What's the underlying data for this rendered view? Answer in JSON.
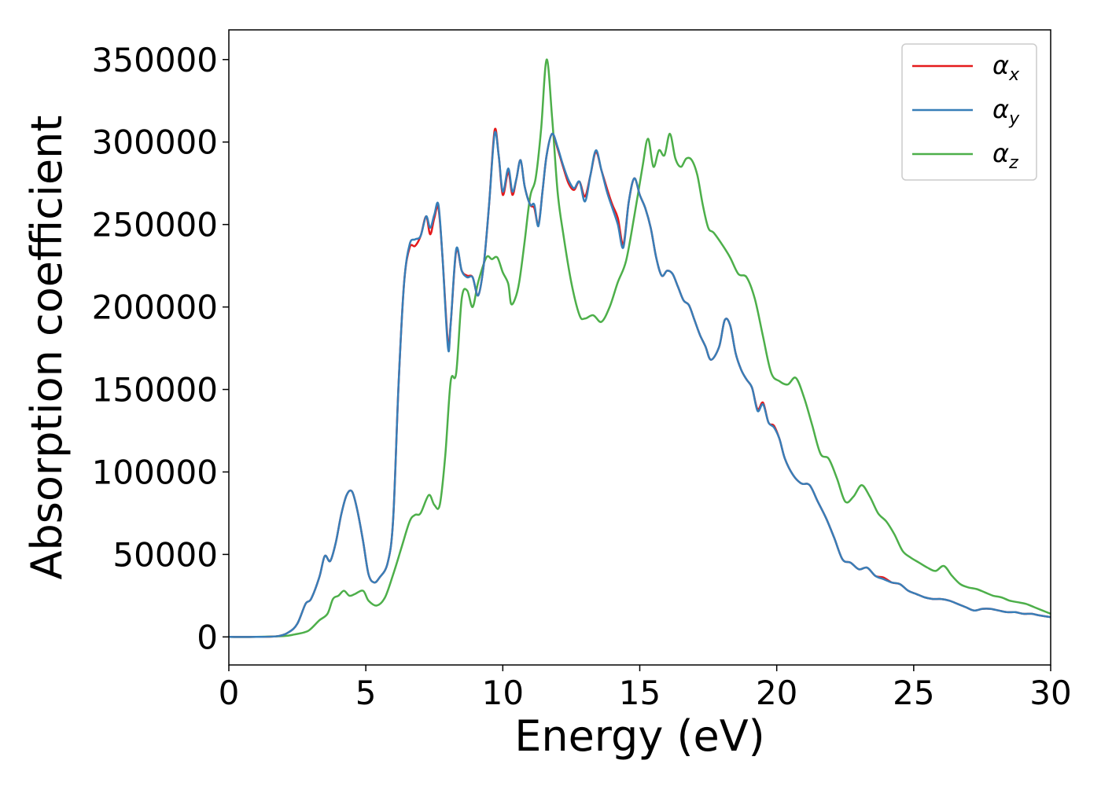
{
  "chart_data": {
    "type": "line",
    "title": "",
    "xlabel": "Energy (eV)",
    "ylabel": "Absorption coefficient",
    "xlim": [
      0,
      30
    ],
    "ylim": [
      -17000,
      368000
    ],
    "xticks": [
      0,
      5,
      10,
      15,
      20,
      25,
      30
    ],
    "yticks": [
      0,
      50000,
      100000,
      150000,
      200000,
      250000,
      300000,
      350000
    ],
    "grid": false,
    "legend_position": "top-right",
    "series": [
      {
        "name": "αx",
        "name_base": "α",
        "name_sub": "x",
        "color": "#e41a1c",
        "x": [
          0,
          1,
          1.8,
          2.2,
          2.5,
          2.8,
          3.0,
          3.3,
          3.5,
          3.7,
          3.9,
          4.1,
          4.3,
          4.5,
          4.7,
          4.9,
          5.1,
          5.3,
          5.5,
          5.8,
          6.0,
          6.2,
          6.4,
          6.6,
          6.8,
          7.0,
          7.2,
          7.35,
          7.5,
          7.65,
          7.8,
          8.0,
          8.1,
          8.3,
          8.5,
          8.7,
          8.9,
          9.1,
          9.3,
          9.5,
          9.7,
          9.85,
          10.0,
          10.2,
          10.35,
          10.5,
          10.65,
          10.8,
          11.0,
          11.15,
          11.3,
          11.45,
          11.6,
          11.8,
          12.0,
          12.2,
          12.4,
          12.6,
          12.8,
          13.0,
          13.2,
          13.4,
          13.6,
          13.8,
          14.0,
          14.2,
          14.4,
          14.6,
          14.8,
          15.0,
          15.2,
          15.4,
          15.6,
          15.8,
          16.0,
          16.2,
          16.4,
          16.6,
          16.8,
          17.0,
          17.2,
          17.4,
          17.6,
          17.9,
          18.1,
          18.3,
          18.5,
          18.7,
          18.9,
          19.1,
          19.3,
          19.5,
          19.7,
          19.9,
          20.1,
          20.3,
          20.6,
          20.9,
          21.2,
          21.5,
          21.8,
          22.1,
          22.4,
          22.7,
          23.0,
          23.3,
          23.6,
          23.9,
          24.2,
          24.5,
          24.8,
          25.1,
          25.4,
          25.7,
          26.0,
          26.3,
          26.6,
          26.9,
          27.2,
          27.5,
          27.8,
          28.1,
          28.4,
          28.7,
          29.0,
          29.3,
          29.6,
          30.0
        ],
        "y": [
          0,
          0,
          500,
          3000,
          8000,
          20000,
          23000,
          36000,
          49000,
          46000,
          57000,
          74000,
          86000,
          88000,
          76000,
          58000,
          38000,
          33000,
          36000,
          45000,
          72000,
          155000,
          215000,
          236000,
          237000,
          243000,
          255000,
          244000,
          254000,
          260000,
          230000,
          178000,
          190000,
          234000,
          222000,
          219000,
          218000,
          207000,
          225000,
          262000,
          307000,
          292000,
          268000,
          282000,
          268000,
          278000,
          289000,
          273000,
          262000,
          260000,
          250000,
          270000,
          292000,
          305000,
          296000,
          285000,
          275000,
          271000,
          276000,
          267000,
          280000,
          294000,
          283000,
          272000,
          262000,
          254000,
          238000,
          264000,
          278000,
          268000,
          260000,
          248000,
          230000,
          219000,
          222000,
          220000,
          212000,
          204000,
          201000,
          192000,
          183000,
          176000,
          168000,
          176000,
          192000,
          189000,
          172000,
          162000,
          156000,
          151000,
          138000,
          142000,
          130000,
          128000,
          120000,
          108000,
          98000,
          93000,
          92000,
          82000,
          72000,
          60000,
          47000,
          45000,
          41000,
          42000,
          37000,
          36000,
          33000,
          32000,
          28000,
          26000,
          24000,
          23000,
          23000,
          22000,
          20000,
          18000,
          16000,
          17000,
          17000,
          16000,
          15000,
          15000,
          14000,
          14000,
          13000,
          12000
        ]
      },
      {
        "name": "αy",
        "name_base": "α",
        "name_sub": "y",
        "color": "#377eb8",
        "x": [
          0,
          1,
          1.8,
          2.2,
          2.5,
          2.8,
          3.0,
          3.3,
          3.5,
          3.7,
          3.9,
          4.1,
          4.3,
          4.5,
          4.7,
          4.9,
          5.1,
          5.3,
          5.5,
          5.8,
          6.0,
          6.2,
          6.4,
          6.6,
          6.8,
          7.0,
          7.2,
          7.35,
          7.5,
          7.65,
          7.8,
          8.0,
          8.1,
          8.3,
          8.5,
          8.7,
          8.9,
          9.1,
          9.3,
          9.5,
          9.7,
          9.85,
          10.0,
          10.2,
          10.35,
          10.5,
          10.65,
          10.8,
          11.0,
          11.15,
          11.3,
          11.45,
          11.6,
          11.8,
          12.0,
          12.2,
          12.4,
          12.6,
          12.8,
          13.0,
          13.2,
          13.4,
          13.6,
          13.8,
          14.0,
          14.2,
          14.4,
          14.6,
          14.8,
          15.0,
          15.2,
          15.4,
          15.6,
          15.8,
          16.0,
          16.2,
          16.4,
          16.6,
          16.8,
          17.0,
          17.2,
          17.4,
          17.6,
          17.9,
          18.1,
          18.3,
          18.5,
          18.7,
          18.9,
          19.1,
          19.3,
          19.5,
          19.7,
          19.9,
          20.1,
          20.3,
          20.6,
          20.9,
          21.2,
          21.5,
          21.8,
          22.1,
          22.4,
          22.7,
          23.0,
          23.3,
          23.6,
          23.9,
          24.2,
          24.5,
          24.8,
          25.1,
          25.4,
          25.7,
          26.0,
          26.3,
          26.6,
          26.9,
          27.2,
          27.5,
          27.8,
          28.1,
          28.4,
          28.7,
          29.0,
          29.3,
          29.6,
          30.0
        ],
        "y": [
          0,
          0,
          500,
          3000,
          8000,
          20000,
          23000,
          36000,
          49000,
          46000,
          57000,
          74000,
          86000,
          88000,
          76000,
          58000,
          38000,
          33000,
          36000,
          45000,
          72000,
          155000,
          215000,
          238000,
          241000,
          243000,
          255000,
          248000,
          256000,
          262000,
          230000,
          175000,
          190000,
          235000,
          222000,
          218000,
          218000,
          207000,
          225000,
          262000,
          305000,
          292000,
          270000,
          284000,
          270000,
          278000,
          289000,
          273000,
          262000,
          262000,
          249000,
          270000,
          292000,
          305000,
          297000,
          286000,
          277000,
          272000,
          276000,
          264000,
          280000,
          295000,
          283000,
          270000,
          260000,
          250000,
          236000,
          264000,
          278000,
          268000,
          260000,
          248000,
          230000,
          219000,
          222000,
          220000,
          212000,
          204000,
          201000,
          192000,
          183000,
          176000,
          168000,
          176000,
          192000,
          189000,
          172000,
          162000,
          156000,
          151000,
          137000,
          141000,
          130000,
          127000,
          120000,
          108000,
          98000,
          93000,
          92000,
          82000,
          72000,
          60000,
          47000,
          45000,
          41000,
          42000,
          37000,
          35000,
          33000,
          32000,
          28000,
          26000,
          24000,
          23000,
          23000,
          22000,
          20000,
          18000,
          16000,
          17000,
          17000,
          16000,
          15000,
          15000,
          14000,
          14000,
          13000,
          12000
        ]
      },
      {
        "name": "αz",
        "name_base": "α",
        "name_sub": "z",
        "color": "#4daf4a",
        "x": [
          0,
          1,
          2.0,
          2.4,
          2.8,
          3.0,
          3.3,
          3.6,
          3.8,
          4.0,
          4.2,
          4.4,
          4.6,
          4.9,
          5.1,
          5.4,
          5.7,
          6.0,
          6.3,
          6.6,
          6.8,
          7.0,
          7.3,
          7.5,
          7.7,
          7.9,
          8.1,
          8.3,
          8.5,
          8.7,
          8.9,
          9.1,
          9.4,
          9.6,
          9.8,
          10.0,
          10.2,
          10.3,
          10.45,
          10.6,
          10.8,
          11.0,
          11.2,
          11.4,
          11.6,
          11.8,
          12.0,
          12.2,
          12.5,
          12.8,
          13.0,
          13.3,
          13.6,
          13.9,
          14.2,
          14.5,
          14.8,
          15.1,
          15.3,
          15.5,
          15.7,
          15.9,
          16.1,
          16.3,
          16.5,
          16.7,
          16.9,
          17.1,
          17.3,
          17.5,
          17.7,
          18.0,
          18.3,
          18.6,
          18.9,
          19.2,
          19.5,
          19.8,
          20.1,
          20.4,
          20.7,
          21.0,
          21.3,
          21.6,
          21.9,
          22.2,
          22.5,
          22.8,
          23.1,
          23.4,
          23.7,
          24.0,
          24.3,
          24.6,
          24.9,
          25.2,
          25.5,
          25.8,
          26.1,
          26.4,
          26.7,
          27.0,
          27.3,
          27.6,
          27.9,
          28.2,
          28.5,
          28.8,
          29.1,
          29.4,
          29.7,
          30.0
        ],
        "y": [
          0,
          0,
          500,
          1500,
          3000,
          5000,
          10000,
          14000,
          23000,
          25000,
          28000,
          25000,
          26000,
          28000,
          22000,
          19000,
          24000,
          38000,
          54000,
          70000,
          74000,
          75000,
          86000,
          80000,
          80000,
          110000,
          155000,
          160000,
          205000,
          210000,
          200000,
          215000,
          230000,
          229000,
          230000,
          221000,
          214000,
          202000,
          205000,
          215000,
          240000,
          267000,
          278000,
          308000,
          350000,
          315000,
          270000,
          245000,
          215000,
          195000,
          193000,
          195000,
          191000,
          200000,
          215000,
          228000,
          255000,
          285000,
          302000,
          285000,
          295000,
          292000,
          305000,
          290000,
          285000,
          290000,
          289000,
          280000,
          262000,
          248000,
          245000,
          238000,
          230000,
          220000,
          218000,
          205000,
          182000,
          160000,
          155000,
          153000,
          157000,
          145000,
          128000,
          111000,
          108000,
          96000,
          82000,
          85000,
          92000,
          85000,
          75000,
          70000,
          62000,
          52000,
          48000,
          45000,
          42000,
          40000,
          43000,
          37000,
          32000,
          30000,
          29000,
          27000,
          25000,
          24000,
          22000,
          21000,
          20000,
          18000,
          16000,
          14000
        ]
      }
    ]
  }
}
